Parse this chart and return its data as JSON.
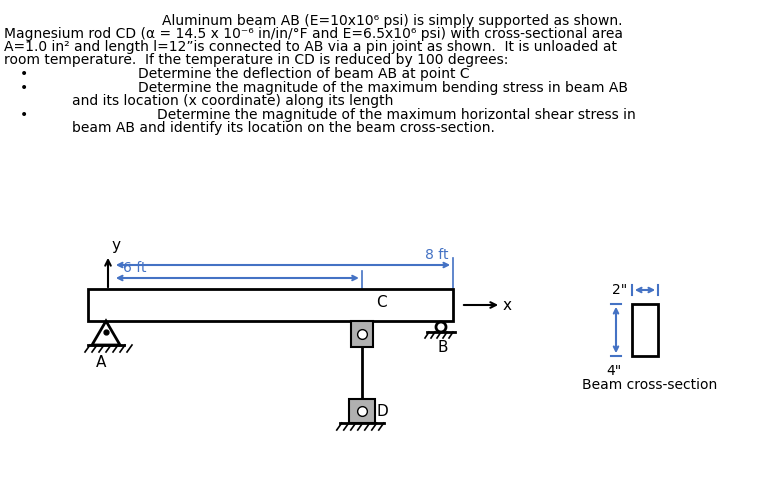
{
  "title_line1": "Aluminum beam AB (E=10x10⁶ psi) is simply supported as shown.",
  "title_line2": "Magnesium rod CD (α = 14.5 x 10⁻⁶ in/in/°F and E=6.5x10⁶ psi) with cross-sectional area",
  "title_line3": "A=1.0 in² and length l=12”is connected to AB via a pin joint as shown.  It is unloaded at",
  "title_line4": "room temperature.  If the temperature in CD is reduced by 100 degrees:",
  "bullet1_text": "Determine the deflection of beam AB at point C",
  "bullet2a": "Determine the magnitude of the maximum bending stress in beam AB",
  "bullet2b": "and its location (x coordinate) along its length",
  "bullet3a": "Determine the magnitude of the maximum horizontal shear stress in",
  "bullet3b": "beam AB and identify its location on the beam cross-section.",
  "dim_8ft": "8 ft",
  "dim_6ft": "6 ft",
  "label_A": "A",
  "label_B": "B",
  "label_C": "C",
  "label_D": "D",
  "label_x": "x",
  "label_y": "y",
  "label_2in": "2\"",
  "label_4in": "4\"",
  "label_beam_cs": "Beam cross-section",
  "bg_color": "#ffffff",
  "blue_color": "#4472C4",
  "black_color": "#000000"
}
